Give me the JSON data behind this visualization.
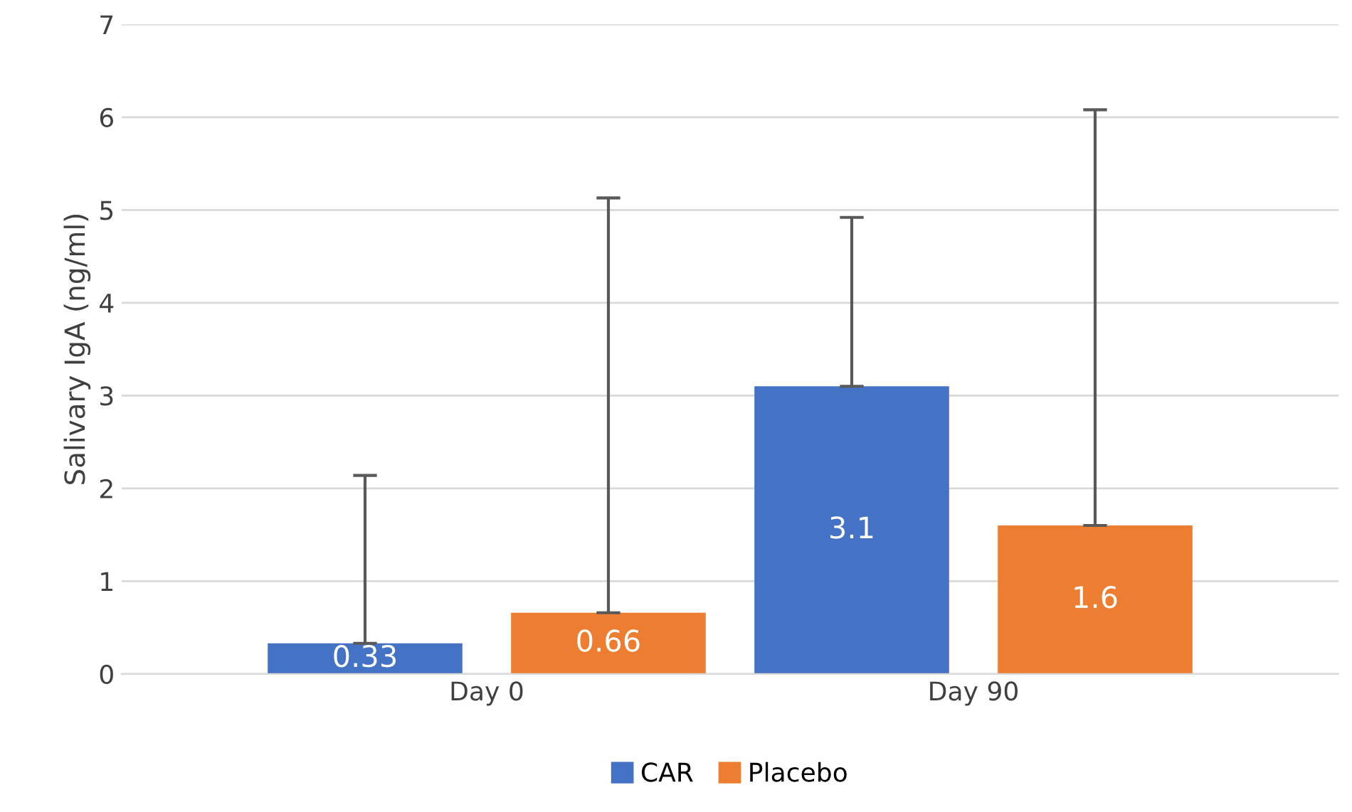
{
  "chart_data": {
    "type": "bar",
    "ylabel": "Salivary IgA (ng/ml)",
    "categories": [
      "Day 0",
      "Day 90"
    ],
    "series": [
      {
        "name": "CAR",
        "color": "#4472c4",
        "values": [
          0.33,
          3.1
        ],
        "errors": [
          [
            0.33,
            2.14
          ],
          [
            3.1,
            4.92
          ]
        ]
      },
      {
        "name": "Placebo",
        "color": "#ed7d31",
        "values": [
          0.66,
          1.6
        ],
        "errors": [
          [
            0.66,
            5.13
          ],
          [
            1.6,
            6.08
          ]
        ]
      }
    ],
    "ylim": [
      0,
      7
    ],
    "yticks": [
      0,
      1,
      2,
      3,
      4,
      5,
      6,
      7
    ],
    "grid": "y",
    "legend": "bottom",
    "data_labels": true
  }
}
